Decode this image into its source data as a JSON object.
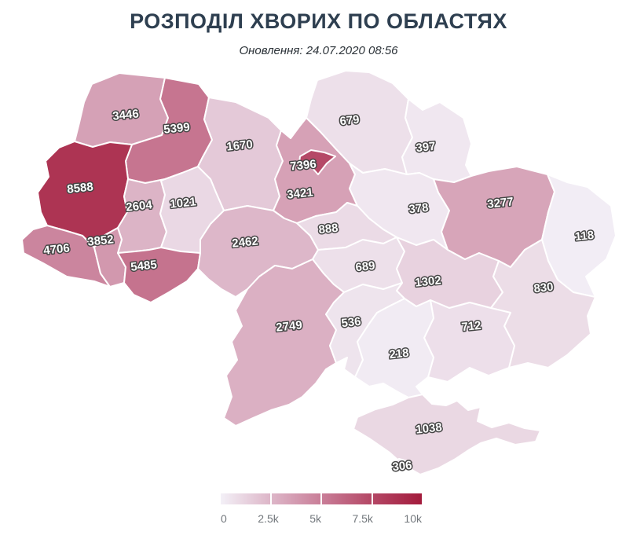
{
  "header": {
    "title": "РОЗПОДІЛ ХВОРИХ ПО ОБЛАСТЯХ",
    "subtitle": "Оновлення: 24.07.2020 08:56"
  },
  "chart_data": {
    "type": "choropleth",
    "title": "РОЗПОДІЛ ХВОРИХ ПО ОБЛАСТЯХ",
    "updated_label": "Оновлення: 24.07.2020 08:56",
    "regions": [
      {
        "id": "volyn",
        "value": 3446
      },
      {
        "id": "rivne",
        "value": 5399
      },
      {
        "id": "zhytomyr",
        "value": 1670
      },
      {
        "id": "chernihiv",
        "value": 679
      },
      {
        "id": "sumy",
        "value": 397
      },
      {
        "id": "lviv",
        "value": 8588
      },
      {
        "id": "ternopil",
        "value": 2604
      },
      {
        "id": "khmelnytskyi",
        "value": 1021
      },
      {
        "id": "kyiv-oblast",
        "value": 3421
      },
      {
        "id": "kyiv-city",
        "value": 7396
      },
      {
        "id": "poltava",
        "value": 378
      },
      {
        "id": "kharkiv",
        "value": 3277
      },
      {
        "id": "luhansk",
        "value": 118
      },
      {
        "id": "zakarpattia",
        "value": 4706
      },
      {
        "id": "ivano-frankivsk",
        "value": 3852
      },
      {
        "id": "chernivtsi",
        "value": 5485
      },
      {
        "id": "vinnytsia",
        "value": 2462
      },
      {
        "id": "cherkasy",
        "value": 888
      },
      {
        "id": "kirovohrad",
        "value": 689
      },
      {
        "id": "dnipropetrovsk",
        "value": 1302
      },
      {
        "id": "donetsk",
        "value": 830
      },
      {
        "id": "odesa",
        "value": 2749
      },
      {
        "id": "mykolaiv",
        "value": 536
      },
      {
        "id": "zaporizhzhia",
        "value": 712
      },
      {
        "id": "kherson",
        "value": 218
      },
      {
        "id": "crimea",
        "value": 1038
      },
      {
        "id": "sevastopol",
        "value": 306
      }
    ],
    "colorscale": {
      "min": 0,
      "max": 10000,
      "stops": [
        [
          0,
          "#F3F0F7"
        ],
        [
          2500,
          "#DDB6C8"
        ],
        [
          5000,
          "#C97E98"
        ],
        [
          7500,
          "#B44765"
        ],
        [
          10000,
          "#A31B3C"
        ]
      ]
    },
    "legend": {
      "ticks": [
        "0",
        "2.5k",
        "5k",
        "7.5k",
        "10k"
      ]
    }
  }
}
